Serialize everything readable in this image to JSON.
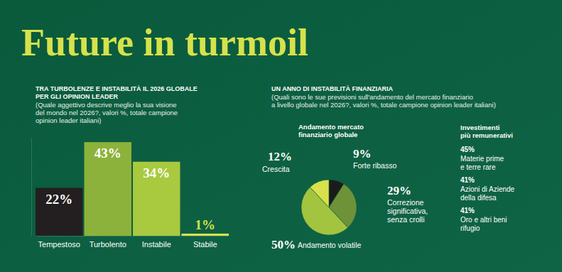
{
  "title": "Future in turmoil",
  "chart_data": [
    {
      "type": "bar",
      "title": "TRA TURBOLENZE E INSTABILITÀ IL 2026 GLOBALE\nPER GLI OPINION LEADER",
      "subtitle": "(Quale aggettivo descrive meglio la sua visione\ndel mondo nel 2026?, valori %, totale campione\nopinion leader italiani)",
      "categories": [
        "Tempestoso",
        "Turbolento",
        "Instabile",
        "Stabile"
      ],
      "values": [
        22,
        43,
        34,
        1
      ],
      "value_labels": [
        "22%",
        "43%",
        "34%",
        "1%"
      ],
      "colors": [
        "#231f20",
        "#8db23b",
        "#a9c93f",
        "#d6e24b"
      ],
      "data_labels": true,
      "tick_labels": "x",
      "ylim": [
        0,
        45
      ]
    },
    {
      "type": "pie",
      "title": "UN ANNO DI INSTABILITÀ FINANZIARIA",
      "subtitle": "(Quali sono le sue previsioni sull'andamento del mercato finanziario\na livello globale nel 2026?, valori %, totale campione opinion leader italiani)",
      "label": "Andamento mercato\nfinanziario globale",
      "categories": [
        "Forte ribasso",
        "Correzione\nsignificativa,\nsenza crolli",
        "Andamento volatile",
        "Crescita"
      ],
      "values": [
        9,
        29,
        50,
        12
      ],
      "value_labels": [
        "9%",
        "29%",
        "50%",
        "12%"
      ],
      "colors": [
        "#1b1b1b",
        "#6e9238",
        "#a3c43f",
        "#d8e14c"
      ],
      "data_labels": true
    }
  ],
  "investments": {
    "title": "Investimenti\npiù remunerativi",
    "items": [
      {
        "value_label": "45%",
        "text": "Materie prime\ne terre rare"
      },
      {
        "value_label": "41%",
        "text": "Azioni di Aziende\ndella difesa"
      },
      {
        "value_label": "41%",
        "text": "Oro e altri beni\nrifugio"
      }
    ]
  }
}
